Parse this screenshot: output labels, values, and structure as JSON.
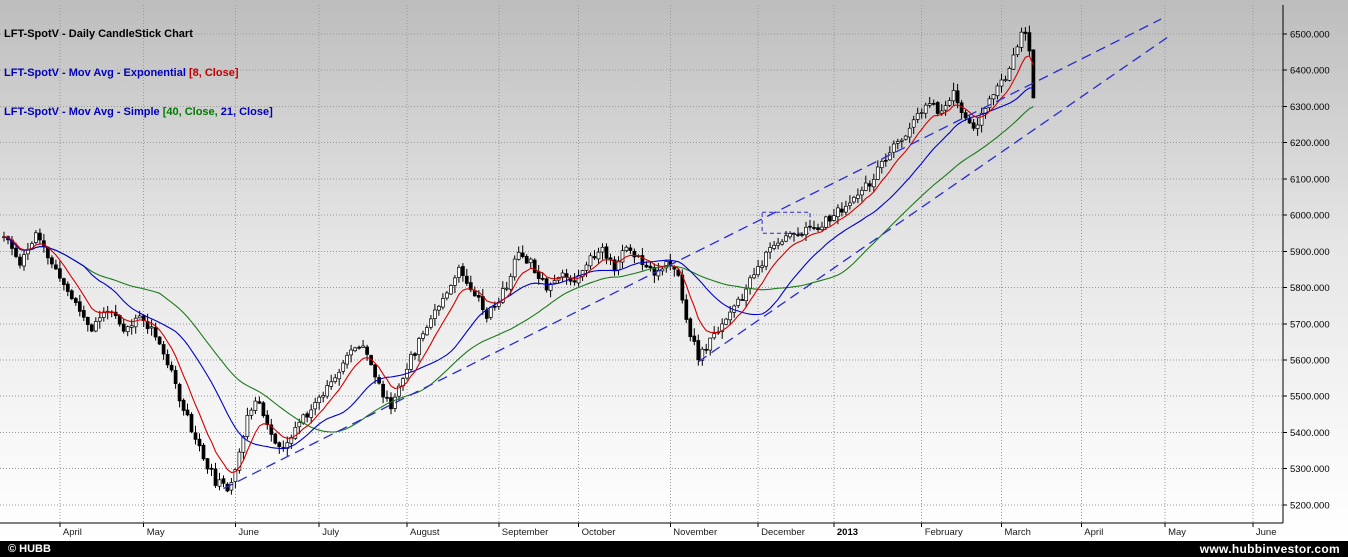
{
  "header": {
    "line1": {
      "text": "LFT-SpotV - Daily CandleStick Chart",
      "color": "#000000"
    },
    "line2": {
      "prefix": "LFT-SpotV - Mov Avg - Exponential ",
      "bracket": "[8, Close]",
      "prefix_color": "#0000bb",
      "bracket_color": "#c00000"
    },
    "line3": {
      "prefix": "LFT-SpotV - Mov Avg - Simple ",
      "bracket1": "[40, Close, ",
      "bracket2": "21, Close]",
      "prefix_color": "#0000bb",
      "bracket1_color": "#007a00",
      "bracket2_color": "#0000bb"
    }
  },
  "footer": {
    "left": "© HUBB",
    "right": "www.hubbinvestor.com",
    "bg": "#000000",
    "text_color": "#ffffff"
  },
  "chart_data": {
    "type": "candlestick",
    "instrument": "LFT-SpotV",
    "timeframe": "Daily",
    "y_ticks": [
      6500,
      6400,
      6300,
      6200,
      6100,
      6000,
      5900,
      5800,
      5700,
      5600,
      5500,
      5400,
      5300,
      5200
    ],
    "y_tick_suffix": ".000",
    "ylim": [
      5150,
      6580
    ],
    "x_months": [
      {
        "label": "April",
        "day": 14,
        "bold": false
      },
      {
        "label": "May",
        "day": 35,
        "bold": false
      },
      {
        "label": "June",
        "day": 58,
        "bold": false
      },
      {
        "label": "July",
        "day": 79,
        "bold": false
      },
      {
        "label": "August",
        "day": 101,
        "bold": false
      },
      {
        "label": "September",
        "day": 124,
        "bold": false
      },
      {
        "label": "October",
        "day": 144,
        "bold": false
      },
      {
        "label": "November",
        "day": 167,
        "bold": false
      },
      {
        "label": "December",
        "day": 189,
        "bold": false
      },
      {
        "label": "2013",
        "day": 208,
        "bold": true
      },
      {
        "label": "February",
        "day": 230,
        "bold": false
      },
      {
        "label": "March",
        "day": 250,
        "bold": false
      },
      {
        "label": "April",
        "day": 270,
        "bold": false
      },
      {
        "label": "May",
        "day": 291,
        "bold": false
      },
      {
        "label": "June",
        "day": 313,
        "bold": false
      }
    ],
    "candles_last_day": 258,
    "trend_keyframes": [
      [
        0,
        5940
      ],
      [
        4,
        5870
      ],
      [
        8,
        5945
      ],
      [
        13,
        5845
      ],
      [
        18,
        5755
      ],
      [
        22,
        5685
      ],
      [
        26,
        5745
      ],
      [
        30,
        5675
      ],
      [
        34,
        5720
      ],
      [
        38,
        5675
      ],
      [
        42,
        5560
      ],
      [
        46,
        5440
      ],
      [
        50,
        5330
      ],
      [
        53,
        5265
      ],
      [
        56,
        5240
      ],
      [
        58,
        5305
      ],
      [
        61,
        5445
      ],
      [
        64,
        5490
      ],
      [
        67,
        5390
      ],
      [
        70,
        5345
      ],
      [
        74,
        5430
      ],
      [
        78,
        5480
      ],
      [
        82,
        5545
      ],
      [
        86,
        5610
      ],
      [
        90,
        5650
      ],
      [
        94,
        5525
      ],
      [
        97,
        5470
      ],
      [
        100,
        5560
      ],
      [
        103,
        5625
      ],
      [
        106,
        5700
      ],
      [
        110,
        5775
      ],
      [
        114,
        5850
      ],
      [
        118,
        5790
      ],
      [
        121,
        5725
      ],
      [
        123,
        5750
      ],
      [
        126,
        5805
      ],
      [
        129,
        5900
      ],
      [
        132,
        5870
      ],
      [
        136,
        5805
      ],
      [
        140,
        5835
      ],
      [
        143,
        5820
      ],
      [
        146,
        5870
      ],
      [
        150,
        5905
      ],
      [
        153,
        5860
      ],
      [
        156,
        5910
      ],
      [
        160,
        5875
      ],
      [
        163,
        5845
      ],
      [
        166,
        5865
      ],
      [
        169,
        5830
      ],
      [
        171,
        5710
      ],
      [
        174,
        5605
      ],
      [
        177,
        5650
      ],
      [
        180,
        5705
      ],
      [
        184,
        5755
      ],
      [
        188,
        5835
      ],
      [
        191,
        5885
      ],
      [
        194,
        5930
      ],
      [
        198,
        5950
      ],
      [
        202,
        5960
      ],
      [
        206,
        5985
      ],
      [
        210,
        6015
      ],
      [
        214,
        6050
      ],
      [
        218,
        6105
      ],
      [
        222,
        6170
      ],
      [
        226,
        6225
      ],
      [
        229,
        6270
      ],
      [
        232,
        6310
      ],
      [
        235,
        6280
      ],
      [
        238,
        6345
      ],
      [
        241,
        6260
      ],
      [
        244,
        6245
      ],
      [
        247,
        6320
      ],
      [
        249,
        6345
      ],
      [
        251,
        6385
      ],
      [
        253,
        6445
      ],
      [
        255,
        6495
      ],
      [
        256,
        6505
      ],
      [
        257,
        6460
      ],
      [
        258,
        6335
      ]
    ],
    "noise": {
      "seed": 11,
      "close_amp": 26,
      "gap_amp": 6,
      "wick_max": 20
    },
    "overlays": [
      {
        "name": "SMA",
        "period": 40,
        "color": "#1a7a1a"
      },
      {
        "name": "SMA",
        "period": 21,
        "color": "#0000cc"
      },
      {
        "name": "EMA",
        "period": 8,
        "color": "#d40000"
      }
    ],
    "trendlines": [
      {
        "from": [
          55,
          5245
        ],
        "to": [
          290,
          6541
        ],
        "color": "#2a2ad0",
        "dash": true
      },
      {
        "from": [
          174,
          5595
        ],
        "to": [
          292,
          6494
        ],
        "color": "#2a2ad0",
        "dash": true
      }
    ],
    "annotation_box": {
      "day_from": 190,
      "day_to": 202,
      "price_from": 5950,
      "price_to": 6008,
      "color": "#2a2ad0"
    },
    "colors": {
      "up_fill": "#ffffff",
      "down_fill": "#000000",
      "outline": "#000000",
      "grid": "#999999",
      "axis": "#000000",
      "bg_top": "#bdbdbd",
      "bg_mid": "#e6e6e6",
      "bg_low": "#f7f7f7",
      "bg_bottom": "#ffffff",
      "month_label": "#1a1a1a",
      "price_label": "#000000"
    }
  }
}
